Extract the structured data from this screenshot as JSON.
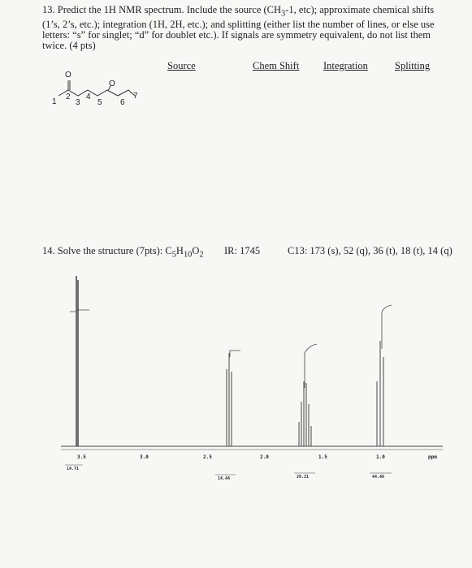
{
  "question13": {
    "number": "13.",
    "text_before": "Predict the 1H NMR spectrum. Include the source (CH",
    "sub": "3",
    "text_after": "-1, etc); approximate chemical shifts (1’s, 2’s, etc.); integration (1H, 2H, etc.); and splitting (either list the number of lines, or else use letters: “s” for singlet; “d” for doublet etc.). If signals are symmetry equivalent, do not list them twice. (4 pts)"
  },
  "table_headers": [
    "Source",
    "Chem Shift",
    "Integration",
    "Splitting"
  ],
  "molecule": {
    "oxygens": [
      "O",
      "O"
    ],
    "numbers": [
      "1",
      "2",
      "3",
      "4",
      "5",
      "6",
      "7"
    ]
  },
  "question14": {
    "text": "14. Solve the structure (7pts): C",
    "formula": [
      "5",
      "H",
      "10",
      "O",
      "2"
    ],
    "ir": "IR: 1745",
    "c13": "C13: 173 (s), 52 (q), 36 (t), 18 (t), 14 (q)"
  },
  "spectrum": {
    "axis_labels": [
      "3.5",
      "3.0",
      "2.5",
      "2.0",
      "1.5",
      "1.0",
      "ppm"
    ],
    "integrations": [
      "14.71",
      "14.44",
      "29.31",
      "44.46"
    ]
  }
}
